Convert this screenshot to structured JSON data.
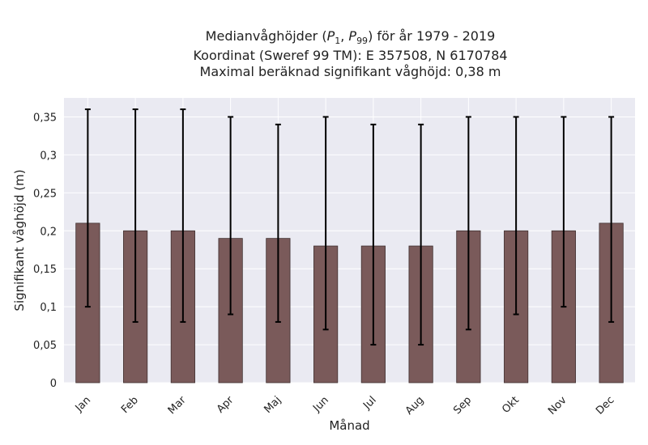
{
  "title": {
    "line1_prefix": "Medianvåghöjder (",
    "p1_base": "P",
    "p1_sub": "1",
    "p99_base": "P",
    "p99_sub": "99",
    "line1_suffix": ") för år 1979 - 2019",
    "line2": "Koordinat (Sweref 99 TM): E 357508, N 6170784",
    "line3": "Maximal beräknad signifikant våghöjd: 0,38 m"
  },
  "colors": {
    "plot_background": "#eaeaf2",
    "bar_fill": "#7a5a5a",
    "bar_stroke": "#3f3030",
    "errorbar": "#000000",
    "grid": "#ffffff",
    "text": "#222222"
  },
  "chart_data": {
    "type": "bar",
    "title": "Medianvåghöjder (P1, P99) för år 1979 - 2019",
    "xlabel": "Månad",
    "ylabel": "Signifikant våghöjd (m)",
    "categories": [
      "Jan",
      "Feb",
      "Mar",
      "Apr",
      "Maj",
      "Jun",
      "Jul",
      "Aug",
      "Sep",
      "Okt",
      "Nov",
      "Dec"
    ],
    "values": [
      0.21,
      0.2,
      0.2,
      0.19,
      0.19,
      0.18,
      0.18,
      0.18,
      0.2,
      0.2,
      0.2,
      0.21
    ],
    "p1": [
      0.1,
      0.08,
      0.08,
      0.09,
      0.08,
      0.07,
      0.05,
      0.05,
      0.07,
      0.09,
      0.1,
      0.08
    ],
    "p99": [
      0.36,
      0.36,
      0.36,
      0.35,
      0.34,
      0.35,
      0.34,
      0.34,
      0.35,
      0.35,
      0.35,
      0.35
    ],
    "ylim": [
      0,
      0.375
    ],
    "yticks": [
      0,
      0.05,
      0.1,
      0.15,
      0.2,
      0.25,
      0.3,
      0.35
    ],
    "ytick_labels": [
      "0",
      "0,05",
      "0,1",
      "0,15",
      "0,2",
      "0,25",
      "0,3",
      "0,35"
    ],
    "grid": true,
    "legend": "none"
  }
}
